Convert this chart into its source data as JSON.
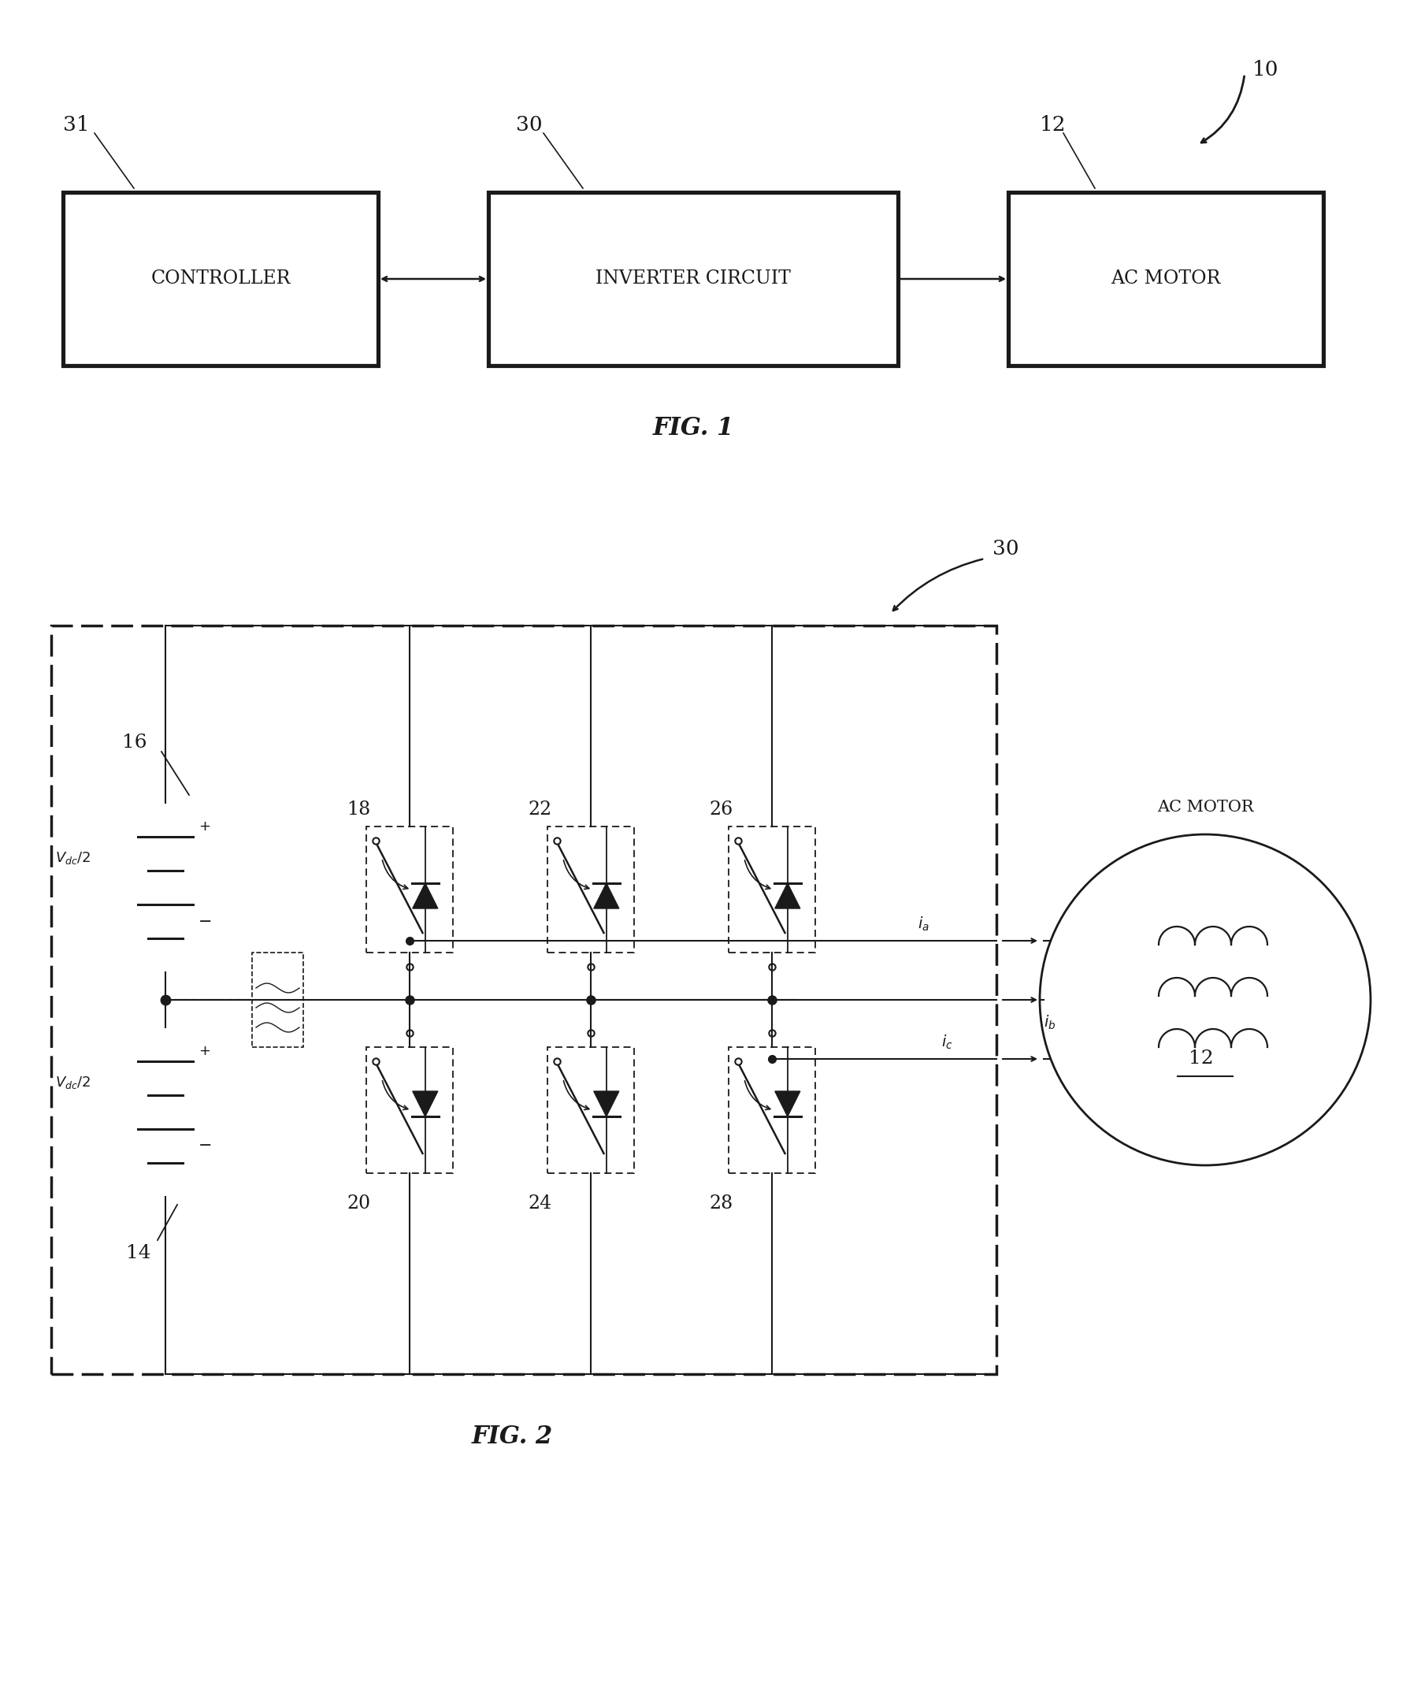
{
  "fig_width": 18.04,
  "fig_height": 21.64,
  "bg_color": "#ffffff",
  "line_color": "#1a1a1a",
  "text_color": "#1a1a1a",
  "fig1": {
    "title": "FIG. 1",
    "label_10": "10",
    "label_31": "31",
    "label_30": "30",
    "label_12": "12",
    "box1_label": "CONTROLLER",
    "box2_label": "INVERTER CIRCUIT",
    "box3_label": "AC MOTOR"
  },
  "fig2": {
    "title": "FIG. 2",
    "label_30": "30",
    "label_16": "16",
    "label_14": "14",
    "label_18": "18",
    "label_20": "20",
    "label_22": "22",
    "label_24": "24",
    "label_26": "26",
    "label_28": "28",
    "label_12": "12",
    "motor_label": "AC MOTOR"
  }
}
